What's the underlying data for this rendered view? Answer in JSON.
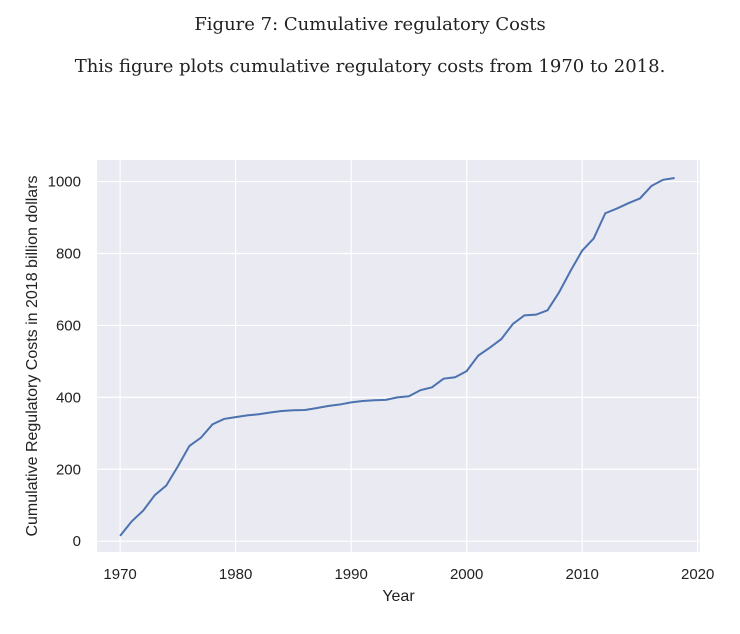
{
  "caption": {
    "title": "Figure 7: Cumulative regulatory Costs",
    "subtitle": "This figure plots cumulative regulatory costs from 1970 to 2018."
  },
  "chart_data": {
    "type": "line",
    "title": "",
    "xlabel": "Year",
    "ylabel": "Cumulative Regulatory Costs in 2018 billion dollars",
    "xlim": [
      1968,
      2020.2
    ],
    "ylim": [
      -30,
      1060
    ],
    "xticks": [
      1970,
      1980,
      1990,
      2000,
      2010,
      2020
    ],
    "yticks": [
      0,
      200,
      400,
      600,
      800,
      1000
    ],
    "grid": true,
    "background": "#eaeaf2",
    "line_color": "#4c72b0",
    "x": [
      1970,
      1971,
      1972,
      1973,
      1974,
      1975,
      1976,
      1977,
      1978,
      1979,
      1980,
      1981,
      1982,
      1983,
      1984,
      1985,
      1986,
      1987,
      1988,
      1989,
      1990,
      1991,
      1992,
      1993,
      1994,
      1995,
      1996,
      1997,
      1998,
      1999,
      2000,
      2001,
      2002,
      2003,
      2004,
      2005,
      2006,
      2007,
      2008,
      2009,
      2010,
      2011,
      2012,
      2013,
      2014,
      2015,
      2016,
      2017,
      2018
    ],
    "y": [
      15,
      55,
      85,
      128,
      155,
      208,
      265,
      288,
      325,
      340,
      345,
      350,
      353,
      358,
      362,
      364,
      365,
      370,
      376,
      380,
      386,
      390,
      392,
      393,
      400,
      403,
      420,
      428,
      452,
      456,
      473,
      516,
      538,
      562,
      604,
      628,
      630,
      642,
      692,
      752,
      808,
      842,
      912,
      925,
      940,
      953,
      988,
      1005,
      1010
    ]
  }
}
